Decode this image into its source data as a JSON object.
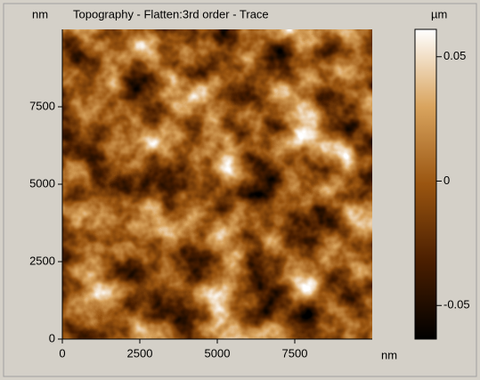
{
  "chart_data": {
    "type": "image",
    "title": "Topography  -  Flatten:3rd order  -  Trace",
    "x_unit": "nm",
    "y_unit": "nm",
    "colorbar_unit": "µm",
    "xlim": [
      0,
      10000
    ],
    "ylim": [
      0,
      10000
    ],
    "xticks": [
      0,
      2500,
      5000,
      7500
    ],
    "yticks": [
      0,
      2500,
      5000,
      7500
    ],
    "clim": [
      -0.0635,
      0.061
    ],
    "cticks": [
      0.05,
      0,
      -0.05
    ],
    "colormap": [
      "#000000",
      "#4a1e00",
      "#9a5510",
      "#d9a45e",
      "#ffffff"
    ]
  }
}
